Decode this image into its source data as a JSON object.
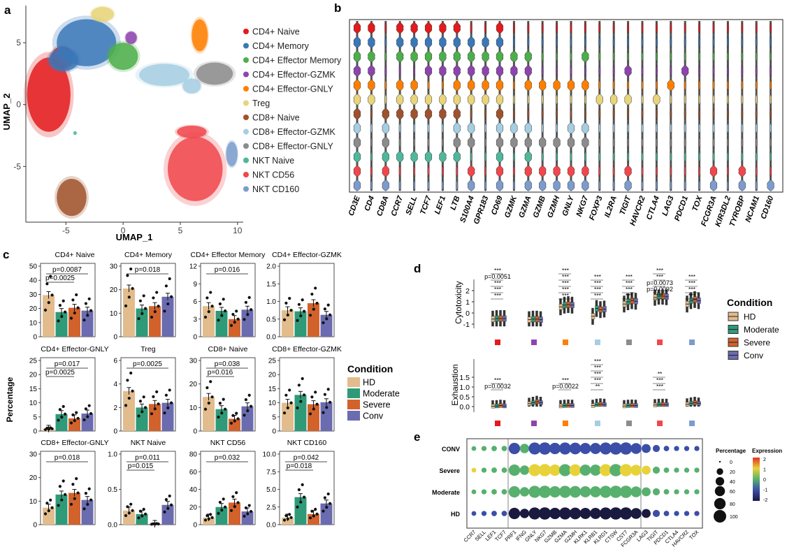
{
  "panels": {
    "a": "a",
    "b": "b",
    "c": "c",
    "d": "d",
    "e": "e"
  },
  "colors": {
    "HD": "#E2BC8C",
    "Moderate": "#2E9A78",
    "Severe": "#D2622B",
    "Conv": "#6B6BB0",
    "clusters": [
      "#E41A1C",
      "#3A78B8",
      "#4DAF4A",
      "#8E44AD",
      "#FF7F00",
      "#E8D47A",
      "#A0522D",
      "#A6CEE3",
      "#8C8C8C",
      "#4FB89A",
      "#F0474C",
      "#7C9CCC"
    ]
  },
  "panel_a": {
    "xlabel": "UMAP_1",
    "ylabel": "UMAP_2",
    "xticks": [
      "-5",
      "0",
      "5",
      "10"
    ],
    "yticks": [
      "5",
      "0",
      "-5"
    ],
    "legend": [
      "CD4+ Naive",
      "CD4+ Memory",
      "CD4+ Effector Memory",
      "CD4+ Effector-GZMK",
      "CD4+ Effector-GNLY",
      "Treg",
      "CD8+ Naive",
      "CD8+ Effector-GZMK",
      "CD8+ Effector-GNLY",
      "NKT Naive",
      "NKT CD56",
      "NKT CD160"
    ]
  },
  "panel_b": {
    "genes": [
      "CD3E",
      "CD4",
      "CD8A",
      "CCR7",
      "SELL",
      "TCF7",
      "LEF1",
      "LTB",
      "S100A4",
      "GPR183",
      "CD69",
      "GZMK",
      "GZMA",
      "GZMB",
      "GZMH",
      "GNLY",
      "NKG7",
      "FOXP3",
      "IL2RA",
      "TIGIT",
      "HAVCR2",
      "CTLA4",
      "LAG3",
      "PDCD1",
      "TOX",
      "FCGR3A",
      "KIR3DL2",
      "TYROBP",
      "NCAM1",
      "CD160"
    ]
  },
  "panel_c": {
    "ylabel": "Percentage",
    "legend_title": "Condition",
    "legend": [
      "HD",
      "Moderate",
      "Severe",
      "Conv"
    ]
  },
  "panel_d": {
    "ylabel_top": "Cytotoxicity",
    "ylabel_bottom": "Exhaustion",
    "legend_title": "Condition",
    "legend": [
      "HD",
      "Moderate",
      "Severe",
      "Conv"
    ],
    "top_yticks": [
      "2",
      "1",
      "0",
      "-1"
    ],
    "bottom_yticks": [
      "1.5",
      "1.0",
      "0.5",
      "0.0"
    ],
    "top_labels": [
      [
        "***",
        "p=0.0051",
        "***",
        "***",
        "***"
      ],
      [
        "***",
        "***",
        "***",
        "***",
        "***"
      ],
      [
        "***",
        "***",
        "***",
        "***"
      ],
      [
        "***",
        "***",
        "***",
        "***"
      ],
      [
        "***",
        "***",
        "p=0.0073",
        "p=0.0092",
        "***"
      ],
      [
        "***",
        "***",
        "***",
        "***"
      ]
    ],
    "bottom_labels": [
      [
        "***",
        "p=0.0032"
      ],
      [
        "***",
        "p=0.0022"
      ],
      [
        "***",
        "***",
        "***",
        "***",
        "**"
      ],
      [
        "**",
        "***",
        "***"
      ]
    ]
  },
  "panel_e": {
    "rows": [
      "CONV",
      "Severe",
      "Moderate",
      "HD"
    ],
    "genes": [
      "CCR7",
      "SELL",
      "LEF1",
      "TCF7",
      "PRF1",
      "IFNG",
      "GNLY",
      "NKG7",
      "GZMB",
      "GZMA",
      "GZMH",
      "KLRK1",
      "KLRB1",
      "KLRD1",
      "CTSW",
      "CST7",
      "FCGR3A",
      "LAG3",
      "TIGIT",
      "PDCD1",
      "CTLA4",
      "HAVCR2",
      "TOX"
    ],
    "size_legend_title": "Percentage",
    "size_legend": [
      "0",
      "20",
      "40",
      "60",
      "80",
      "100"
    ],
    "color_legend_title": "Expression",
    "color_legend": [
      "2",
      "1",
      "0",
      "-1",
      "-2"
    ]
  },
  "chart_data": [
    {
      "type": "scatter",
      "panel": "a",
      "title": "",
      "xlabel": "UMAP_1",
      "ylabel": "UMAP_2",
      "xlim": [
        -8.5,
        10.5
      ],
      "ylim": [
        -9.5,
        8
      ],
      "series": [
        {
          "name": "CD4+ Naive",
          "center": [
            -6.5,
            0.5
          ]
        },
        {
          "name": "CD4+ Memory",
          "center": [
            -3,
            5
          ]
        },
        {
          "name": "CD4+ Effector Memory",
          "center": [
            0,
            4
          ]
        },
        {
          "name": "CD4+ Effector-GZMK",
          "center": [
            0.5,
            5.5
          ]
        },
        {
          "name": "CD4+ Effector-GNLY",
          "center": [
            6.7,
            5.5
          ]
        },
        {
          "name": "Treg",
          "center": [
            -1.8,
            7.3
          ]
        },
        {
          "name": "CD8+ Naive",
          "center": [
            -4.5,
            -7.5
          ]
        },
        {
          "name": "CD8+ Effector-GZMK",
          "center": [
            4.5,
            2
          ]
        },
        {
          "name": "CD8+ Effector-GNLY",
          "center": [
            8,
            2.5
          ]
        },
        {
          "name": "NKT Naive",
          "center": [
            -4.2,
            -2.3
          ]
        },
        {
          "name": "NKT CD56",
          "center": [
            6.5,
            -5
          ]
        },
        {
          "name": "NKT CD160",
          "center": [
            9.5,
            -4
          ]
        }
      ]
    },
    {
      "type": "bar",
      "panel": "c",
      "ylabel": "Percentage",
      "categories": [
        "HD",
        "Moderate",
        "Severe",
        "Conv"
      ],
      "subplots": [
        {
          "title": "CD4+ Naive",
          "ylim": [
            0,
            50
          ],
          "yticks": [
            "0",
            "10",
            "20",
            "30",
            "40",
            "50"
          ],
          "values": [
            29.5,
            17.5,
            20.5,
            18.5
          ],
          "pvalues": [
            "p=0.0087",
            "p=0.0025"
          ]
        },
        {
          "title": "CD4+ Memory",
          "ylim": [
            0,
            30
          ],
          "yticks": [
            "0",
            "10",
            "20",
            "30"
          ],
          "values": [
            20.5,
            12,
            13,
            17
          ],
          "pvalues": [
            "p=0.018"
          ]
        },
        {
          "title": "CD4+ Effector Memory",
          "ylim": [
            0,
            12
          ],
          "yticks": [
            "0",
            "3",
            "6",
            "9",
            "12"
          ],
          "values": [
            5.2,
            4.4,
            3,
            4.6
          ],
          "pvalues": [
            "p=0.016"
          ]
        },
        {
          "title": "CD4+ Effector-GZMK",
          "ylim": [
            0,
            2
          ],
          "yticks": [
            "0.0",
            "0.5",
            "1.0",
            "1.5",
            "2.0"
          ],
          "values": [
            0.75,
            0.72,
            0.95,
            0.62
          ],
          "pvalues": []
        },
        {
          "title": "CD4+ Effector-GNLY",
          "ylim": [
            0,
            25
          ],
          "yticks": [
            "0",
            "5",
            "10",
            "15",
            "20",
            "25"
          ],
          "values": [
            0.8,
            6,
            4.5,
            6.2
          ],
          "pvalues": [
            "p=0.017",
            "p=0.0025"
          ]
        },
        {
          "title": "Treg",
          "ylim": [
            0,
            6
          ],
          "yticks": [
            "0",
            "2",
            "4",
            "6"
          ],
          "values": [
            3.4,
            2,
            2.3,
            2.4
          ],
          "pvalues": [
            "p=0.0025"
          ]
        },
        {
          "title": "CD8+ Naive",
          "ylim": [
            0,
            30
          ],
          "yticks": [
            "0",
            "10",
            "20",
            "30"
          ],
          "values": [
            14.5,
            9.3,
            5.2,
            10.5
          ],
          "pvalues": [
            "p=0.038",
            "p=0.016"
          ]
        },
        {
          "title": "CD8+ Effector-GZMK",
          "ylim": [
            0,
            25
          ],
          "yticks": [
            "0",
            "5",
            "10",
            "15",
            "20",
            "25"
          ],
          "values": [
            10,
            12.8,
            9.5,
            10.2
          ],
          "pvalues": []
        },
        {
          "title": "CD8+ Effector-GNLY",
          "ylim": [
            0,
            30
          ],
          "yticks": [
            "0",
            "10",
            "20",
            "30"
          ],
          "values": [
            7.2,
            12.8,
            13.5,
            10.5
          ],
          "pvalues": [
            "p=0.018"
          ]
        },
        {
          "title": "NKT Naive",
          "ylim": [
            0,
            1.0
          ],
          "yticks": [
            "0.0",
            "0.5",
            "1.0"
          ],
          "values": [
            0.2,
            0.15,
            0.01,
            0.28
          ],
          "pvalues": [
            "p=0.011",
            "p=0.015"
          ]
        },
        {
          "title": "NKT CD56",
          "ylim": [
            0,
            80
          ],
          "yticks": [
            "0",
            "20",
            "40",
            "60",
            "80"
          ],
          "values": [
            8,
            20,
            25,
            15
          ],
          "pvalues": [
            "p=0.032"
          ]
        },
        {
          "title": "NKT CD160",
          "ylim": [
            0,
            10
          ],
          "yticks": [
            "0.0",
            "2.5",
            "5.0",
            "7.5",
            "10.0"
          ],
          "values": [
            1,
            3.9,
            1.5,
            3
          ],
          "pvalues": [
            "p=0.042",
            "p=0.018"
          ]
        }
      ]
    },
    {
      "type": "box",
      "panel": "d",
      "groups": 7,
      "series_order": [
        "HD",
        "Moderate",
        "Severe",
        "Conv"
      ],
      "cytotoxicity_medians": [
        [
          -0.55,
          -0.5,
          -0.5,
          -0.5
        ],
        [
          -0.6,
          -0.55,
          -0.55,
          -0.6
        ],
        [
          0.55,
          0.7,
          0.75,
          0.7
        ],
        [
          -0.3,
          0.4,
          0.3,
          0.35
        ],
        [
          0.8,
          1.0,
          1.1,
          1.05
        ],
        [
          1.4,
          1.5,
          1.5,
          1.45
        ],
        [
          0.8,
          1.1,
          1.2,
          1.1
        ]
      ],
      "exhaustion_medians": [
        [
          0.02,
          0.03,
          0.05,
          0.03
        ],
        [
          0.15,
          0.2,
          0.25,
          0.2
        ],
        [
          0.03,
          0.05,
          0.06,
          0.05
        ],
        [
          0.05,
          0.1,
          0.12,
          0.1
        ],
        [
          0.03,
          0.05,
          0.06,
          0.05
        ],
        [
          0.08,
          0.1,
          0.1,
          0.1
        ],
        [
          0.12,
          0.17,
          0.2,
          0.16
        ]
      ]
    }
  ]
}
